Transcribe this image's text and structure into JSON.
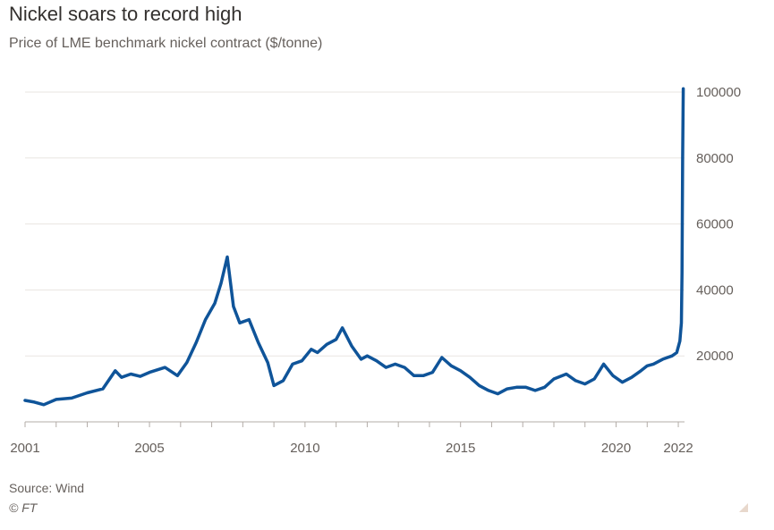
{
  "header": {
    "title": "Nickel soars to record high",
    "subtitle": "Price of LME benchmark nickel contract ($/tonne)"
  },
  "footer": {
    "source": "Source: Wind",
    "copyright": "© FT"
  },
  "colors": {
    "line": "#0f5499",
    "grid": "#e9e5e1",
    "axis": "#b3aca7",
    "text": "#66605c"
  },
  "chart_data": {
    "type": "line",
    "title": "Nickel soars to record high",
    "subtitle": "Price of LME benchmark nickel contract ($/tonne)",
    "xlabel": "",
    "ylabel": "",
    "xlim": [
      2001.0,
      2022.2
    ],
    "ylim": [
      0,
      100000
    ],
    "x_ticks": [
      2001,
      2005,
      2010,
      2015,
      2020,
      2022
    ],
    "y_ticks": [
      20000,
      40000,
      60000,
      80000,
      100000
    ],
    "grid": true,
    "y_axis_side": "right",
    "series": [
      {
        "x": [
          2001.0,
          2001.3,
          2001.6,
          2002.0,
          2002.5,
          2003.0,
          2003.5,
          2003.9,
          2004.1,
          2004.4,
          2004.7,
          2005.0,
          2005.5,
          2005.9,
          2006.2,
          2006.5,
          2006.8,
          2007.1,
          2007.3,
          2007.5,
          2007.7,
          2007.9,
          2008.2,
          2008.5,
          2008.8,
          2009.0,
          2009.3,
          2009.6,
          2009.9,
          2010.2,
          2010.4,
          2010.7,
          2011.0,
          2011.2,
          2011.5,
          2011.8,
          2012.0,
          2012.3,
          2012.6,
          2012.9,
          2013.2,
          2013.5,
          2013.8,
          2014.1,
          2014.4,
          2014.7,
          2015.0,
          2015.3,
          2015.6,
          2015.9,
          2016.2,
          2016.5,
          2016.8,
          2017.1,
          2017.4,
          2017.7,
          2018.0,
          2018.4,
          2018.7,
          2019.0,
          2019.3,
          2019.6,
          2019.9,
          2020.2,
          2020.5,
          2020.8,
          2021.0,
          2021.2,
          2021.5,
          2021.8,
          2021.95,
          2022.05,
          2022.1,
          2022.12,
          2022.14,
          2022.16
        ],
        "y": [
          6500,
          6000,
          5200,
          6800,
          7200,
          8800,
          10000,
          15500,
          13500,
          14500,
          13800,
          15000,
          16500,
          14000,
          18000,
          24000,
          31000,
          36000,
          42000,
          50000,
          35000,
          30000,
          31000,
          24000,
          18000,
          11000,
          12500,
          17500,
          18500,
          22000,
          21000,
          23500,
          25000,
          28500,
          23000,
          19000,
          20000,
          18500,
          16500,
          17500,
          16500,
          14000,
          14000,
          15000,
          19500,
          17000,
          15500,
          13500,
          11000,
          9500,
          8500,
          10000,
          10500,
          10500,
          9500,
          10500,
          13000,
          14500,
          12500,
          11500,
          13000,
          17500,
          14000,
          12000,
          13500,
          15500,
          17000,
          17500,
          19000,
          20000,
          21000,
          24500,
          30000,
          45000,
          80000,
          101000
        ]
      }
    ]
  }
}
